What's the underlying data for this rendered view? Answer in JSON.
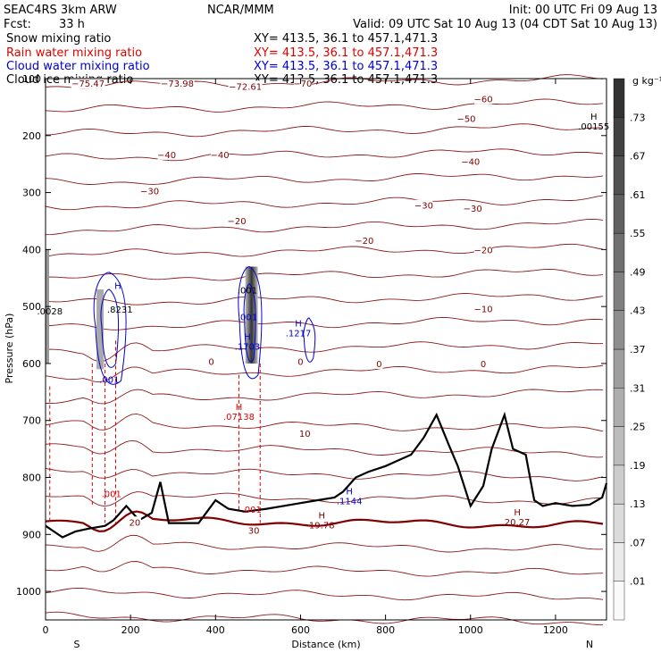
{
  "header": {
    "model": "SEAC4RS  3km ARW",
    "center": "NCAR/MMM",
    "init": "Init: 00 UTC Fri 09 Aug 13",
    "fcst_label": "Fcst:",
    "fcst_value": "33 h",
    "valid": "Valid: 09 UTC Sat 10 Aug 13 (04 CDT Sat 10 Aug 13)"
  },
  "fields": [
    {
      "name": "Snow mixing ratio",
      "xy": "XY= 413.5, 36.1 to 457.1,471.3",
      "color": "#000000"
    },
    {
      "name": "Rain water mixing ratio",
      "xy": "XY= 413.5, 36.1 to 457.1,471.3",
      "color": "#e00000"
    },
    {
      "name": "Cloud water mixing ratio",
      "xy": "XY= 413.5, 36.1 to 457.1,471.3",
      "color": "#0000cc"
    },
    {
      "name": "Cloud ice mixing ratio",
      "xy": "XY= 413.5, 36.1 to 457.1,471.3",
      "color": "#000000"
    }
  ],
  "chart_data": {
    "type": "contour-cross-section",
    "xlabel": "Distance (km)",
    "ylabel": "Pressure (hPa)",
    "xlim": [
      0,
      1320
    ],
    "ylim": [
      1050,
      100
    ],
    "x_ticks": [
      0,
      200,
      400,
      600,
      800,
      1000,
      1200
    ],
    "y_ticks": [
      100,
      200,
      300,
      400,
      500,
      600,
      700,
      800,
      900,
      1000
    ],
    "x_end_labels": {
      "left": "S",
      "right": "N"
    },
    "temperature_contour_labels": [
      {
        "x": 100,
        "p": 108,
        "text": "−75.47"
      },
      {
        "x": 310,
        "p": 108,
        "text": "−73.98"
      },
      {
        "x": 470,
        "p": 113,
        "text": "−72.61"
      },
      {
        "x": 605,
        "p": 108,
        "text": "−70"
      },
      {
        "x": 1030,
        "p": 135,
        "text": "−60"
      },
      {
        "x": 990,
        "p": 170,
        "text": "−50"
      },
      {
        "x": 285,
        "p": 233,
        "text": "−40"
      },
      {
        "x": 410,
        "p": 233,
        "text": "−40"
      },
      {
        "x": 1000,
        "p": 245,
        "text": "−40"
      },
      {
        "x": 245,
        "p": 297,
        "text": "−30"
      },
      {
        "x": 890,
        "p": 322,
        "text": "−30"
      },
      {
        "x": 1005,
        "p": 327,
        "text": "−30"
      },
      {
        "x": 450,
        "p": 349,
        "text": "−20"
      },
      {
        "x": 750,
        "p": 384,
        "text": "−20"
      },
      {
        "x": 1030,
        "p": 400,
        "text": "−20"
      },
      {
        "x": 1030,
        "p": 504,
        "text": "−10"
      },
      {
        "x": 390,
        "p": 596,
        "text": "0"
      },
      {
        "x": 600,
        "p": 596,
        "text": "0"
      },
      {
        "x": 785,
        "p": 600,
        "text": "0"
      },
      {
        "x": 1030,
        "p": 600,
        "text": "0"
      },
      {
        "x": 610,
        "p": 722,
        "text": "10"
      },
      {
        "x": 210,
        "p": 878,
        "text": "20"
      }
    ],
    "extrema": [
      {
        "x": 1290,
        "p": 175,
        "symbol": "H",
        "value": ".00155",
        "color": "#000000"
      },
      {
        "x": 10,
        "p": 500,
        "symbol": "",
        "value": ".0028",
        "color": "#000000"
      },
      {
        "x": 170,
        "p": 472,
        "symbol": "H",
        "value": "",
        "color": "#0000cc"
      },
      {
        "x": 175,
        "p": 497,
        "symbol": "",
        "value": ".8231",
        "color": "#000000"
      },
      {
        "x": 150,
        "p": 620,
        "symbol": "",
        "value": ".001",
        "color": "#0000cc"
      },
      {
        "x": 475,
        "p": 463,
        "symbol": "",
        "value": ".001",
        "color": "#000000"
      },
      {
        "x": 475,
        "p": 510,
        "symbol": "",
        "value": ".001",
        "color": "#0000cc"
      },
      {
        "x": 475,
        "p": 562,
        "symbol": "H",
        "value": ".1703",
        "color": "#0000cc"
      },
      {
        "x": 595,
        "p": 538,
        "symbol": "H",
        "value": ".1217",
        "color": "#0000cc"
      },
      {
        "x": 455,
        "p": 685,
        "symbol": "H",
        "value": ".07138",
        "color": "#e00000"
      },
      {
        "x": 155,
        "p": 820,
        "symbol": "",
        "value": ".001",
        "color": "#e00000"
      },
      {
        "x": 485,
        "p": 848,
        "symbol": "",
        "value": ".001",
        "color": "#e00000"
      },
      {
        "x": 650,
        "p": 875,
        "symbol": "H",
        "value": "19.78",
        "color": "#800000"
      },
      {
        "x": 1110,
        "p": 870,
        "symbol": "H",
        "value": "20.27",
        "color": "#800000"
      },
      {
        "x": 715,
        "p": 833,
        "symbol": "H",
        "value": ".1144",
        "color": "#0000cc"
      },
      {
        "x": 490,
        "p": 885,
        "symbol": "",
        "value": "30",
        "color": "#800000"
      }
    ],
    "colorbar": {
      "unit": "g kg⁻¹",
      "levels": [
        ".01",
        ".07",
        ".13",
        ".19",
        ".25",
        ".31",
        ".37",
        ".43",
        ".49",
        ".55",
        ".61",
        ".67",
        ".73"
      ]
    }
  }
}
